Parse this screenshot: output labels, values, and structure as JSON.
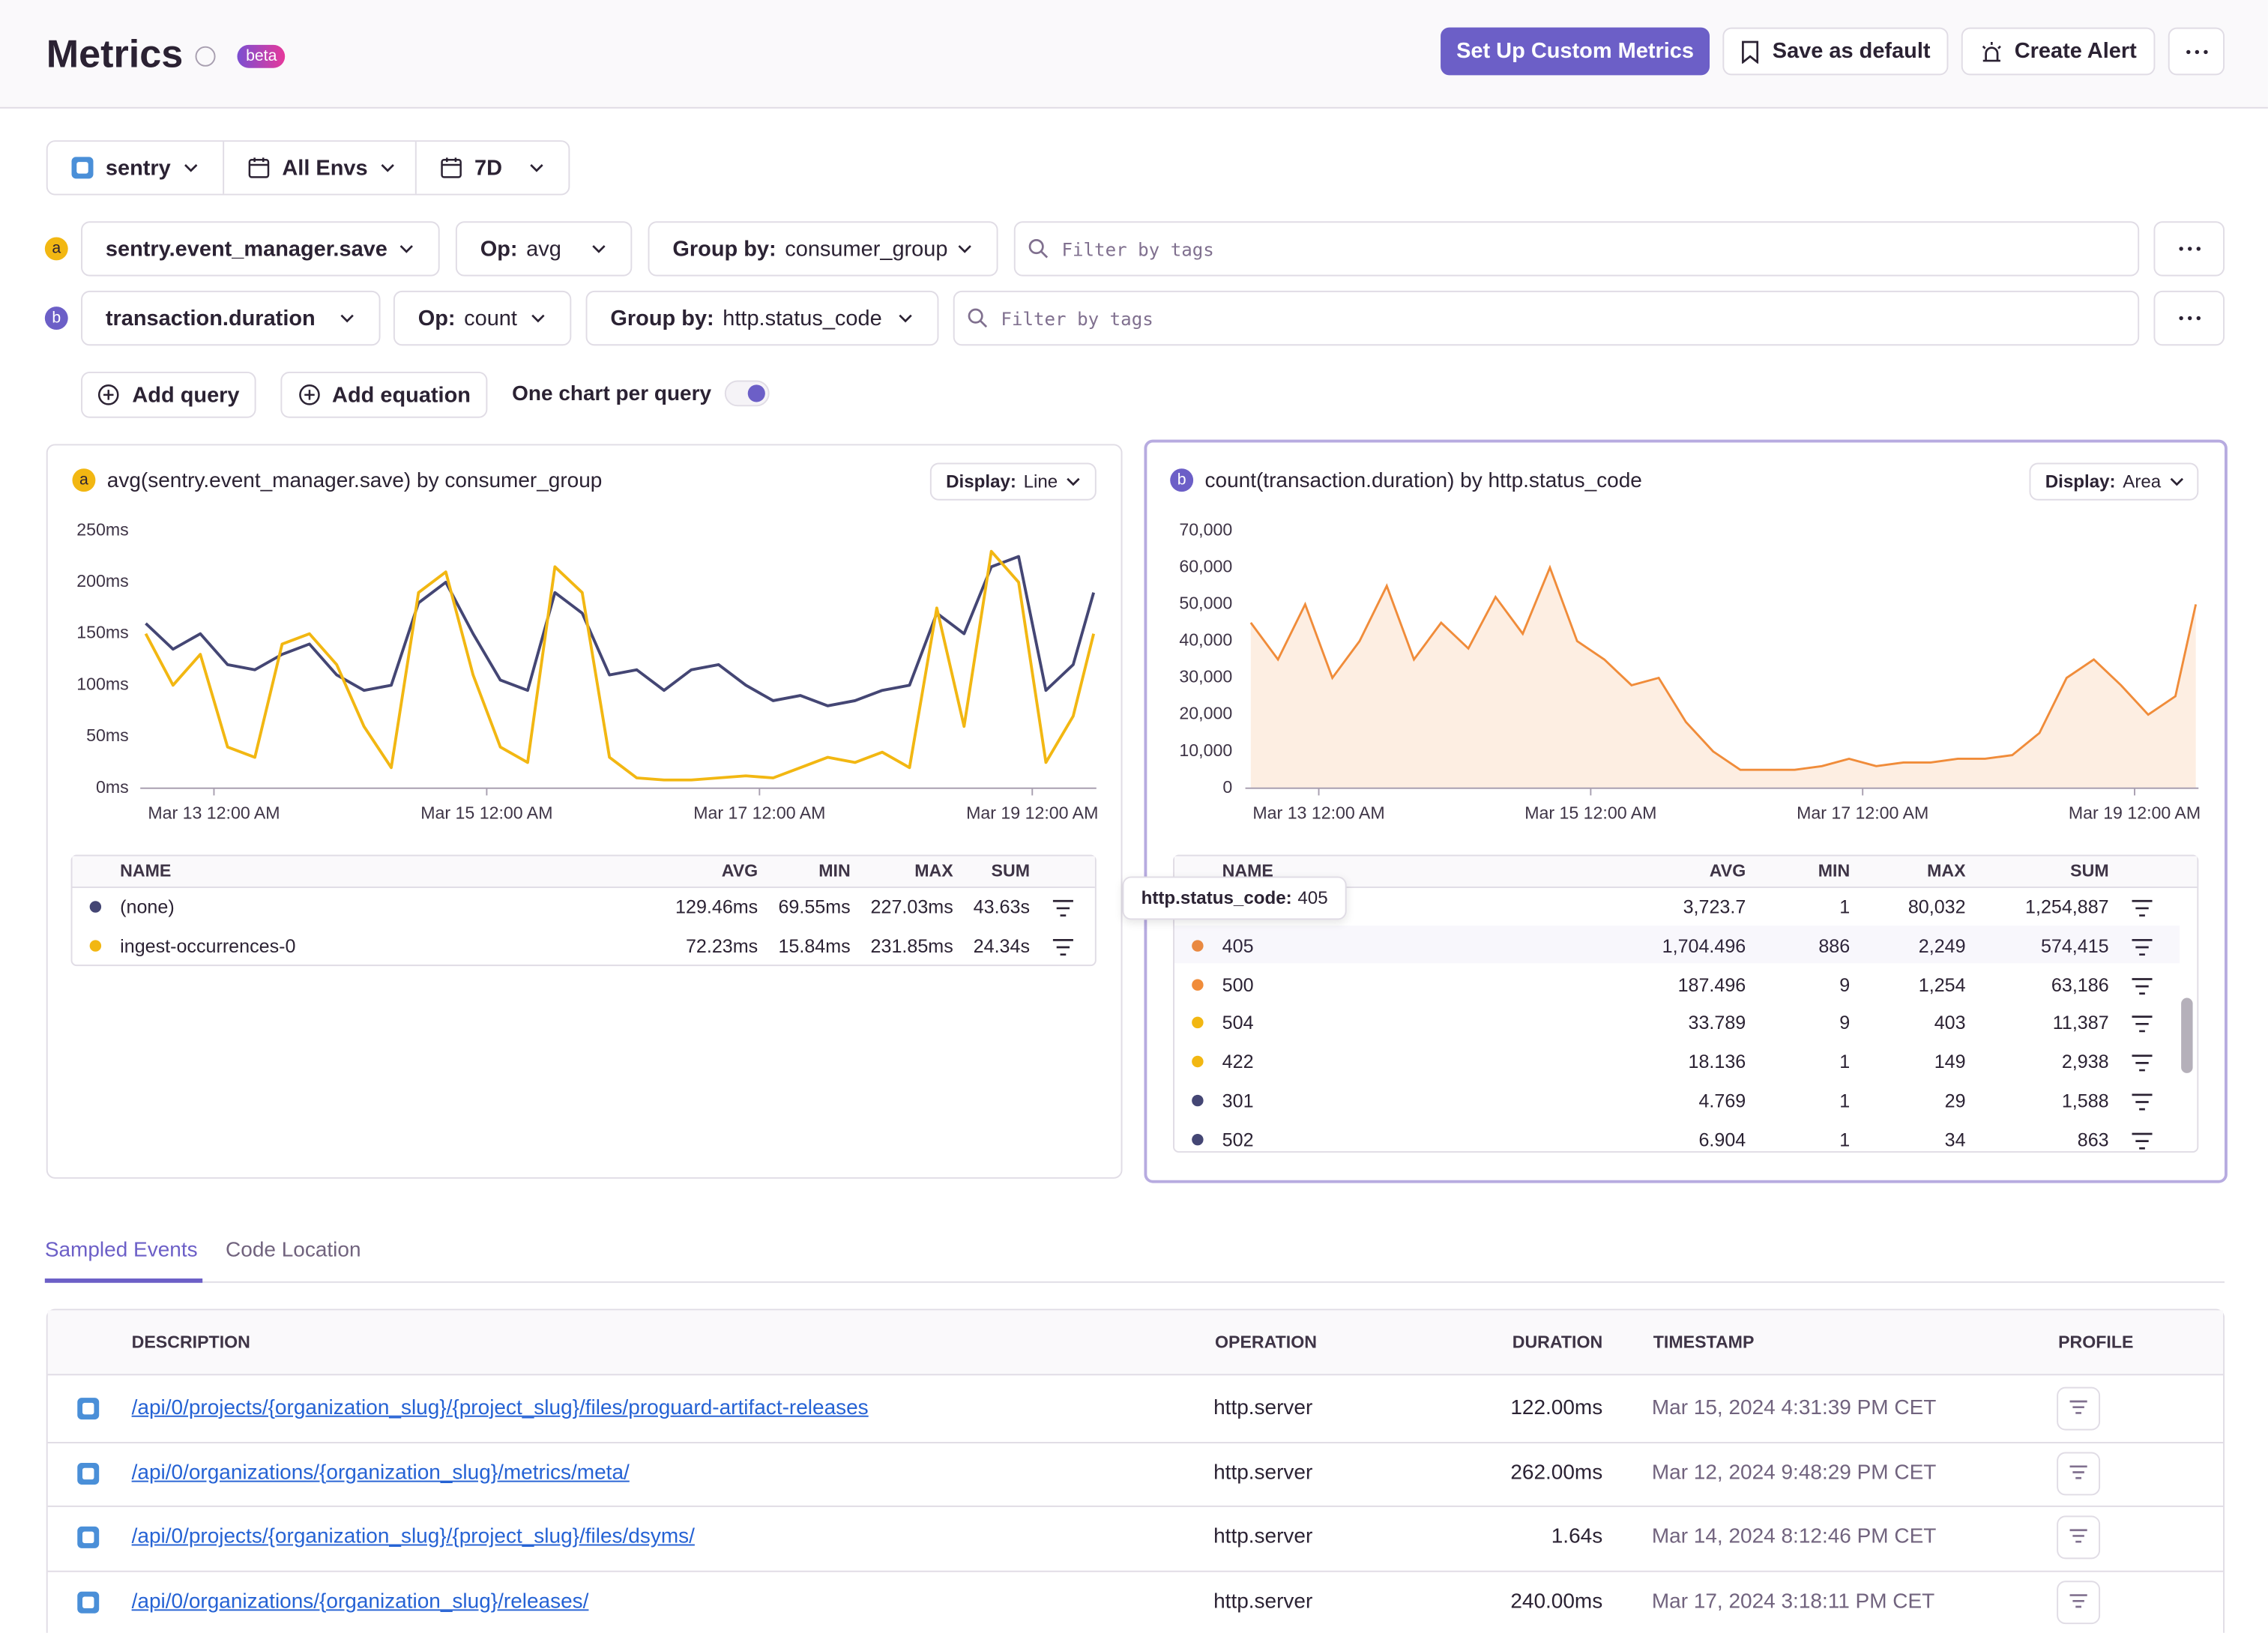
{
  "header": {
    "title": "Metrics",
    "badge": "beta",
    "buttons": [
      "Set Up Custom Metrics",
      "Save as default",
      "Create Alert"
    ]
  },
  "filters": {
    "project": "sentry",
    "environment": "All Envs",
    "period": "7D"
  },
  "queries": [
    {
      "letter": "a",
      "metric": "sentry.event_manager.save",
      "op_label": "Op:",
      "op": "avg",
      "group_label": "Group by:",
      "group": "consumer_group",
      "filter_placeholder": "Filter by tags"
    },
    {
      "letter": "b",
      "metric": "transaction.duration",
      "op_label": "Op:",
      "op": "count",
      "group_label": "Group by:",
      "group": "http.status_code",
      "filter_placeholder": "Filter by tags"
    }
  ],
  "actions": {
    "add_query": "Add query",
    "add_equation": "Add equation",
    "toggle": "One chart per query"
  },
  "chart_data": [
    {
      "type": "line",
      "letter": "a",
      "title": "avg(sentry.event_manager.save) by consumer_group",
      "display_label": "Display:",
      "display": "Line",
      "grid": false,
      "x": [
        12.5,
        12.7,
        12.9,
        13.1,
        13.3,
        13.5,
        13.7,
        13.9,
        14.1,
        14.3,
        14.5,
        14.7,
        14.9,
        15.1,
        15.3,
        15.5,
        15.7,
        15.9,
        16.1,
        16.3,
        16.5,
        16.7,
        16.9,
        17.1,
        17.3,
        17.5,
        17.7,
        17.9,
        18.1,
        18.3,
        18.5,
        18.7,
        18.9,
        19.1,
        19.3,
        19.45
      ],
      "series": [
        {
          "color": "#444674",
          "values": [
            160,
            135,
            150,
            120,
            115,
            130,
            140,
            110,
            95,
            100,
            180,
            200,
            150,
            105,
            95,
            190,
            170,
            110,
            115,
            95,
            115,
            120,
            100,
            85,
            90,
            80,
            85,
            95,
            100,
            170,
            150,
            215,
            225,
            95,
            120,
            190
          ]
        },
        {
          "color": "#f2b712",
          "values": [
            150,
            100,
            130,
            40,
            30,
            140,
            150,
            120,
            60,
            20,
            190,
            210,
            110,
            40,
            25,
            215,
            190,
            30,
            10,
            8,
            8,
            10,
            12,
            10,
            20,
            30,
            25,
            35,
            20,
            175,
            60,
            230,
            200,
            25,
            70,
            150
          ]
        }
      ],
      "xlim": [
        12.46,
        19.47
      ],
      "xticks": [
        {
          "value": 13,
          "label": "Mar 13 12:00 AM"
        },
        {
          "value": 15,
          "label": "Mar 15 12:00 AM"
        },
        {
          "value": 17,
          "label": "Mar 17 12:00 AM"
        },
        {
          "value": 19,
          "label": "Mar 19 12:00 AM"
        }
      ],
      "ylim": [
        0,
        250
      ],
      "yticks": [
        {
          "value": 0,
          "label": "0ms"
        },
        {
          "value": 50,
          "label": "50ms"
        },
        {
          "value": 100,
          "label": "100ms"
        },
        {
          "value": 150,
          "label": "150ms"
        },
        {
          "value": 200,
          "label": "200ms"
        },
        {
          "value": 250,
          "label": "250ms"
        }
      ],
      "table": {
        "columns": [
          "NAME",
          "AVG",
          "MIN",
          "MAX",
          "SUM"
        ],
        "rows": [
          {
            "color": "#444674",
            "name": "(none)",
            "avg": "129.46ms",
            "min": "69.55ms",
            "max": "227.03ms",
            "sum": "43.63s"
          },
          {
            "color": "#f2b712",
            "name": "ingest-occurrences-0",
            "avg": "72.23ms",
            "min": "15.84ms",
            "max": "231.85ms",
            "sum": "24.34s"
          }
        ]
      }
    },
    {
      "type": "area",
      "letter": "b",
      "title": "count(transaction.duration) by http.status_code",
      "display_label": "Display:",
      "display": "Area",
      "grid": false,
      "x": [
        12.5,
        12.7,
        12.9,
        13.1,
        13.3,
        13.5,
        13.7,
        13.9,
        14.1,
        14.3,
        14.5,
        14.7,
        14.9,
        15.1,
        15.3,
        15.5,
        15.7,
        15.9,
        16.1,
        16.3,
        16.5,
        16.7,
        16.9,
        17.1,
        17.3,
        17.5,
        17.7,
        17.9,
        18.1,
        18.3,
        18.5,
        18.7,
        18.9,
        19.1,
        19.3,
        19.45
      ],
      "series": [
        {
          "color": "#f08c3a",
          "values": [
            45000,
            35000,
            50000,
            30000,
            40000,
            55000,
            35000,
            45000,
            38000,
            52000,
            42000,
            60000,
            40000,
            35000,
            28000,
            30000,
            18000,
            10000,
            5000,
            5000,
            5000,
            6000,
            8000,
            6000,
            7000,
            7000,
            8000,
            8000,
            9000,
            15000,
            30000,
            35000,
            28000,
            20000,
            25000,
            50000
          ]
        }
      ],
      "xlim": [
        12.46,
        19.47
      ],
      "xticks": [
        {
          "value": 13,
          "label": "Mar 13 12:00 AM"
        },
        {
          "value": 15,
          "label": "Mar 15 12:00 AM"
        },
        {
          "value": 17,
          "label": "Mar 17 12:00 AM"
        },
        {
          "value": 19,
          "label": "Mar 19 12:00 AM"
        }
      ],
      "ylim": [
        0,
        70000
      ],
      "yticks": [
        0,
        {
          "value": 10000,
          "label": "10,000"
        },
        {
          "value": 20000,
          "label": "20,000"
        },
        {
          "value": 30000,
          "label": "30,000"
        },
        {
          "value": 40000,
          "label": "40,000"
        },
        {
          "value": 50000,
          "label": "50,000"
        },
        {
          "value": 60000,
          "label": "60,000"
        },
        {
          "value": 70000,
          "label": "70,000"
        }
      ],
      "table": {
        "columns": [
          "NAME",
          "AVG",
          "MIN",
          "MAX",
          "SUM"
        ],
        "rows": [
          {
            "color": "#444674",
            "name": null,
            "avg": "3,723.7",
            "min": "1",
            "max": "80,032",
            "sum": "1,254,887"
          },
          {
            "color": "#f08c3a",
            "name": "405",
            "avg": "1,704.496",
            "min": "886",
            "max": "2,249",
            "sum": "574,415"
          },
          {
            "color": "#f08c3a",
            "name": "500",
            "avg": "187.496",
            "min": "9",
            "max": "1,254",
            "sum": "63,186"
          },
          {
            "color": "#f2b712",
            "name": "504",
            "avg": "33.789",
            "min": "9",
            "max": "403",
            "sum": "11,387"
          },
          {
            "color": "#f2b712",
            "name": "422",
            "avg": "18.136",
            "min": "1",
            "max": "149",
            "sum": "2,938"
          },
          {
            "color": "#444674",
            "name": "301",
            "avg": "4.769",
            "min": "1",
            "max": "29",
            "sum": "1,588"
          },
          {
            "color": "#444674",
            "name": "502",
            "avg": "6.904",
            "min": "1",
            "max": "34",
            "sum": "863"
          }
        ]
      }
    }
  ],
  "tooltip": {
    "key": "http.status_code:",
    "value": "405"
  },
  "tabs": [
    "Sampled Events",
    "Code Location"
  ],
  "events": {
    "columns": [
      "DESCRIPTION",
      "OPERATION",
      "DURATION",
      "TIMESTAMP",
      "PROFILE"
    ],
    "rows": [
      [
        "/api/0/projects/{organization_slug}/{project_slug}/files/proguard-artifact-releases",
        "http.server",
        "122.00ms",
        "Mar 15, 2024 4:31:39 PM CET"
      ],
      [
        "/api/0/organizations/{organization_slug}/metrics/meta/",
        "http.server",
        "262.00ms",
        "Mar 12, 2024 9:48:29 PM CET"
      ],
      [
        "/api/0/projects/{organization_slug}/{project_slug}/files/dsyms/",
        "http.server",
        "1.64s",
        "Mar 14, 2024 8:12:46 PM CET"
      ],
      [
        "/api/0/organizations/{organization_slug}/releases/",
        "http.server",
        "240.00ms",
        "Mar 17, 2024 3:18:11 PM CET"
      ]
    ]
  }
}
